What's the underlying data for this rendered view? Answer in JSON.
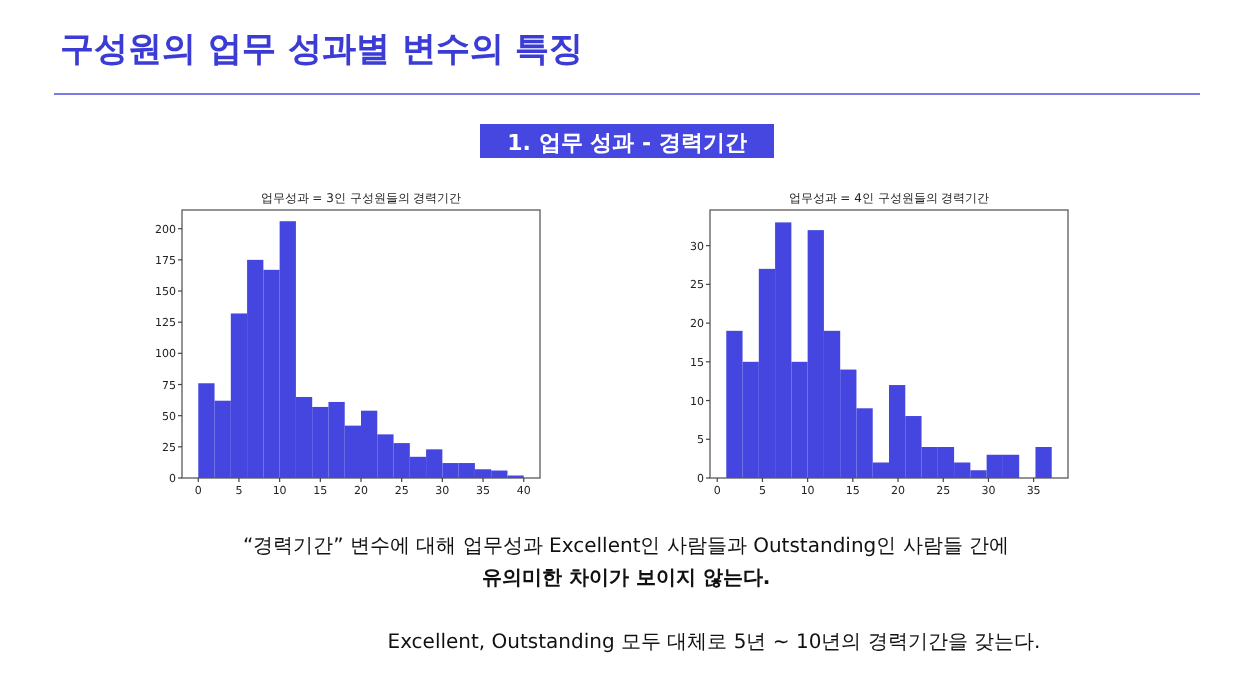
{
  "chart_data": [
    {
      "type": "other",
      "title": "구성원의 업무 성과별 변수의 특징",
      "subtitle": "1. 업무 성과 - 경력기간",
      "annotations": [
        "“경력기간” 변수에 대해 업무성과 Excellent인 사람들과 Outstanding인 사람들 간에",
        "유의미한 차이가 보이지 않는다.",
        "Excellent, Outstanding 모두 대체로 5년 ~ 10년의 경력기간을 갖는다."
      ]
    },
    {
      "type": "histogram",
      "title": "업무성과 = 3인 구성원들의 경력기간",
      "color": "#4545e0",
      "bins": [
        0,
        2,
        4,
        6,
        8,
        10,
        12,
        14,
        16,
        18,
        20,
        22,
        24,
        26,
        28,
        30,
        32,
        34,
        36,
        38,
        40
      ],
      "values": [
        76,
        62,
        132,
        175,
        167,
        206,
        65,
        57,
        61,
        42,
        54,
        35,
        28,
        17,
        23,
        12,
        12,
        7,
        6,
        2
      ],
      "xlim": [
        -2,
        42
      ],
      "ylim": [
        0,
        215
      ],
      "xticks": [
        0,
        5,
        10,
        15,
        20,
        25,
        30,
        35,
        40
      ],
      "yticks": [
        0,
        25,
        50,
        75,
        100,
        125,
        150,
        175,
        200
      ]
    },
    {
      "type": "histogram",
      "title": "업무성과 = 4인 구성원들의 경력기간",
      "color": "#4545e0",
      "bins": [
        1,
        2.8,
        4.6,
        6.4,
        8.2,
        10,
        11.8,
        13.6,
        15.4,
        17.2,
        19,
        20.8,
        22.6,
        24.4,
        26.2,
        28,
        29.8,
        31.6,
        33.4,
        35.2,
        37
      ],
      "values": [
        19,
        15,
        27,
        33,
        15,
        32,
        19,
        14,
        9,
        2,
        12,
        8,
        4,
        4,
        2,
        1,
        3,
        3,
        0,
        4
      ],
      "xlim": [
        -0.8,
        38.8
      ],
      "ylim": [
        0,
        34.6
      ],
      "xticks": [
        0,
        5,
        10,
        15,
        20,
        25,
        30,
        35
      ],
      "yticks": [
        0,
        5,
        10,
        15,
        20,
        25,
        30
      ]
    }
  ]
}
